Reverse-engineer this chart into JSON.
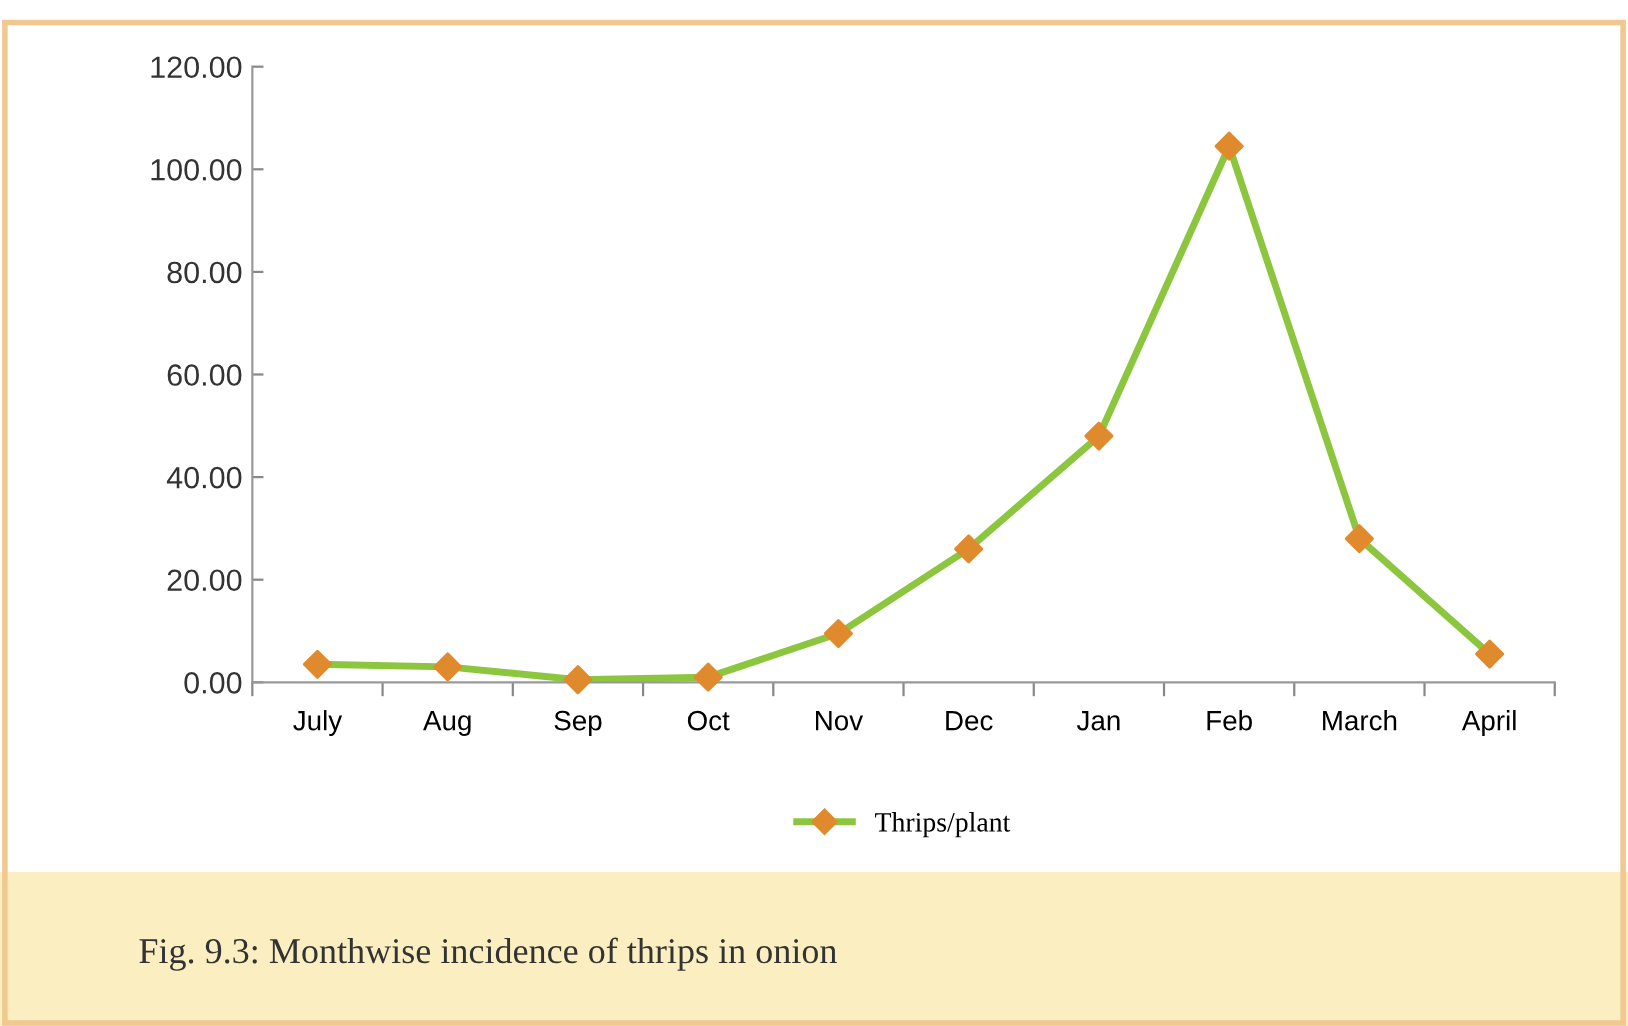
{
  "chart_data": {
    "type": "line",
    "categories": [
      "July",
      "Aug",
      "Sep",
      "Oct",
      "Nov",
      "Dec",
      "Jan",
      "Feb",
      "March",
      "April"
    ],
    "series": [
      {
        "name": "Thrips/plant",
        "color": "#8cc63f",
        "colors": [
          "#e08a2e",
          "#e08a2e",
          "#e08a2e",
          "#e08a2e",
          "#e08a2e",
          "#e08a2e",
          "#e08a2e",
          "#e08a2e",
          "#e08a2e",
          "#e08a2e"
        ],
        "values": [
          3.5,
          3.0,
          0.5,
          1.0,
          9.5,
          26.0,
          48.0,
          104.5,
          28.0,
          5.5
        ]
      }
    ],
    "ylim": [
      0,
      120
    ],
    "yticks": [
      {
        "value": 0,
        "label": "0.00"
      },
      {
        "value": 20,
        "label": "20.00"
      },
      {
        "value": 40,
        "label": "40.00"
      },
      {
        "value": 60,
        "label": "60.00"
      },
      {
        "value": 80,
        "label": "80.00"
      },
      {
        "value": 100,
        "label": "100.00"
      },
      {
        "value": 120,
        "label": "120.00"
      }
    ],
    "marker": "diamond",
    "line_style": "solid",
    "grid": false,
    "legend": "bottom",
    "annotations": [
      "Fig. 9.3: Monthwise incidence of thrips in onion"
    ]
  }
}
